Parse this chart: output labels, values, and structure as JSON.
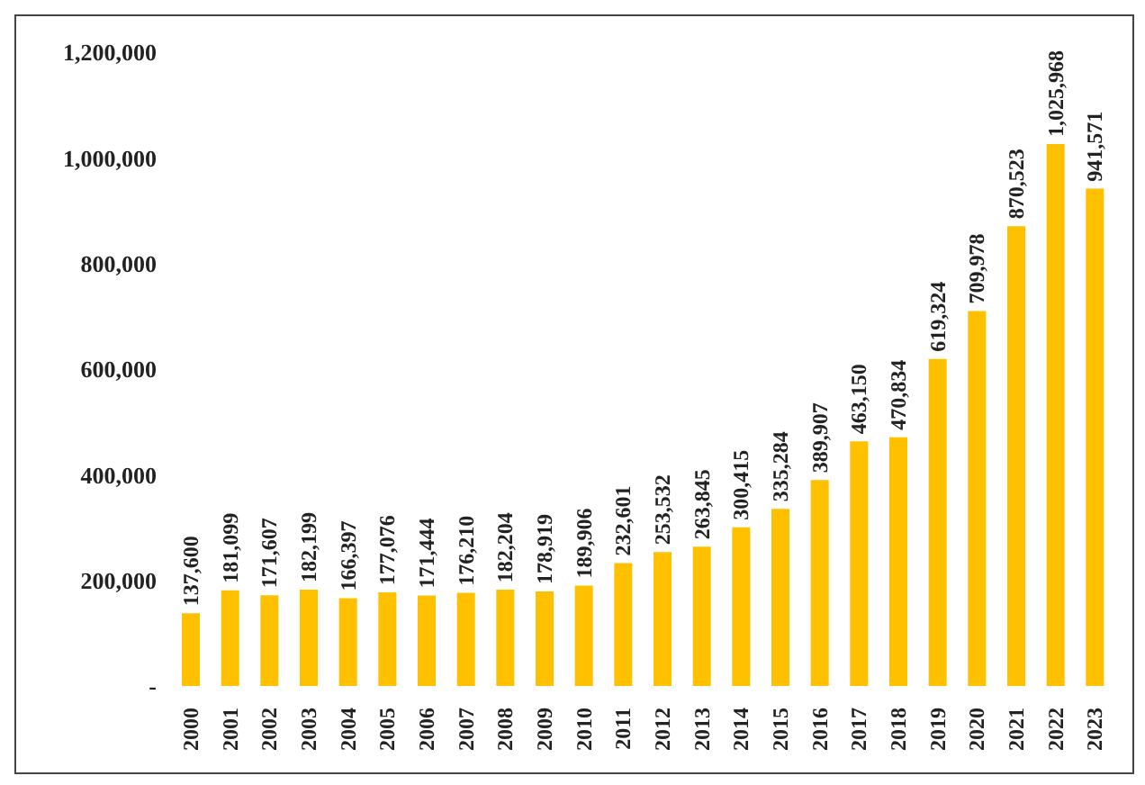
{
  "chart_data": {
    "type": "bar",
    "categories": [
      "2000",
      "2001",
      "2002",
      "2003",
      "2004",
      "2005",
      "2006",
      "2007",
      "2008",
      "2009",
      "2010",
      "2011",
      "2012",
      "2013",
      "2014",
      "2015",
      "2016",
      "2017",
      "2018",
      "2019",
      "2020",
      "2021",
      "2022",
      "2023"
    ],
    "values": [
      137600,
      181099,
      171607,
      182199,
      166397,
      177076,
      171444,
      176210,
      182204,
      178919,
      189906,
      232601,
      253532,
      263845,
      300415,
      335284,
      389907,
      463150,
      470834,
      619324,
      709978,
      870523,
      1025968,
      941571
    ],
    "value_labels": [
      "137,600",
      "181,099",
      "171,607",
      "182,199",
      "166,397",
      "177,076",
      "171,444",
      "176,210",
      "182,204",
      "178,919",
      "189,906",
      "232,601",
      "253,532",
      "263,845",
      "300,415",
      "335,284",
      "389,907",
      "463,150",
      "470,834",
      "619,324",
      "709,978",
      "870,523",
      "1,025,968",
      "941,571"
    ],
    "color": "#ffc000",
    "ylim": [
      0,
      1200000
    ],
    "yticks": [
      {
        "value": 0,
        "label": "-"
      },
      {
        "value": 200000,
        "label": "200,000"
      },
      {
        "value": 400000,
        "label": "400,000"
      },
      {
        "value": 600000,
        "label": "600,000"
      },
      {
        "value": 800000,
        "label": "800,000"
      },
      {
        "value": 1000000,
        "label": "1,000,000"
      },
      {
        "value": 1200000,
        "label": "1,200,000"
      }
    ],
    "grid": false
  }
}
